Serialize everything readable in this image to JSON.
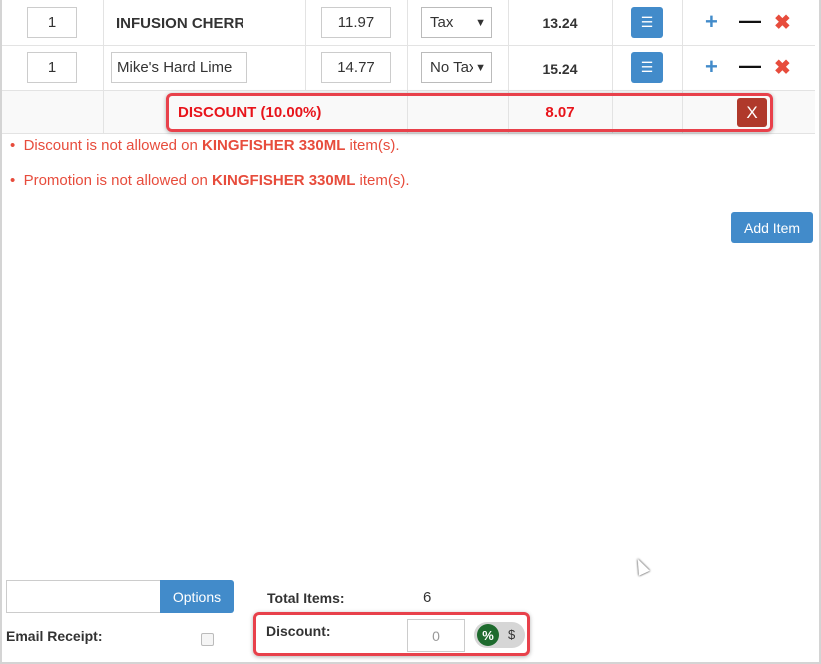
{
  "items": [
    {
      "qty": "1",
      "name": "INFUSION CHERRY",
      "name_editable": false,
      "price": "11.97",
      "tax": "Tax",
      "total": "13.24"
    },
    {
      "qty": "1",
      "name": "Mike's Hard Lime",
      "name_editable": true,
      "price": "14.77",
      "tax": "No Tax",
      "total": "15.24"
    }
  ],
  "discount_row": {
    "label": "DISCOUNT (10.00%)",
    "amount": "8.07",
    "remove_label": "X"
  },
  "errors": [
    {
      "pre": "Discount is not allowed on ",
      "item": "KINGFISHER 330ML",
      "post": " item(s)."
    },
    {
      "pre": "Promotion is not allowed on ",
      "item": "KINGFISHER 330ML",
      "post": " item(s)."
    }
  ],
  "add_item_label": "Add Item",
  "footer": {
    "options_label": "Options",
    "options_input": "",
    "email_receipt_label": "Email Receipt:",
    "email_receipt_checked": false,
    "total_items_label": "Total Items:",
    "total_items": "6",
    "discount_label": "Discount:",
    "discount_placeholder": "0",
    "discount_mode": "%",
    "mode_percent": "%",
    "mode_dollar": "$"
  },
  "colors": {
    "primary": "#428bca",
    "danger": "#e74c3c",
    "remove_button": "#b0392b",
    "toggle_active": "#1e6b2e"
  }
}
